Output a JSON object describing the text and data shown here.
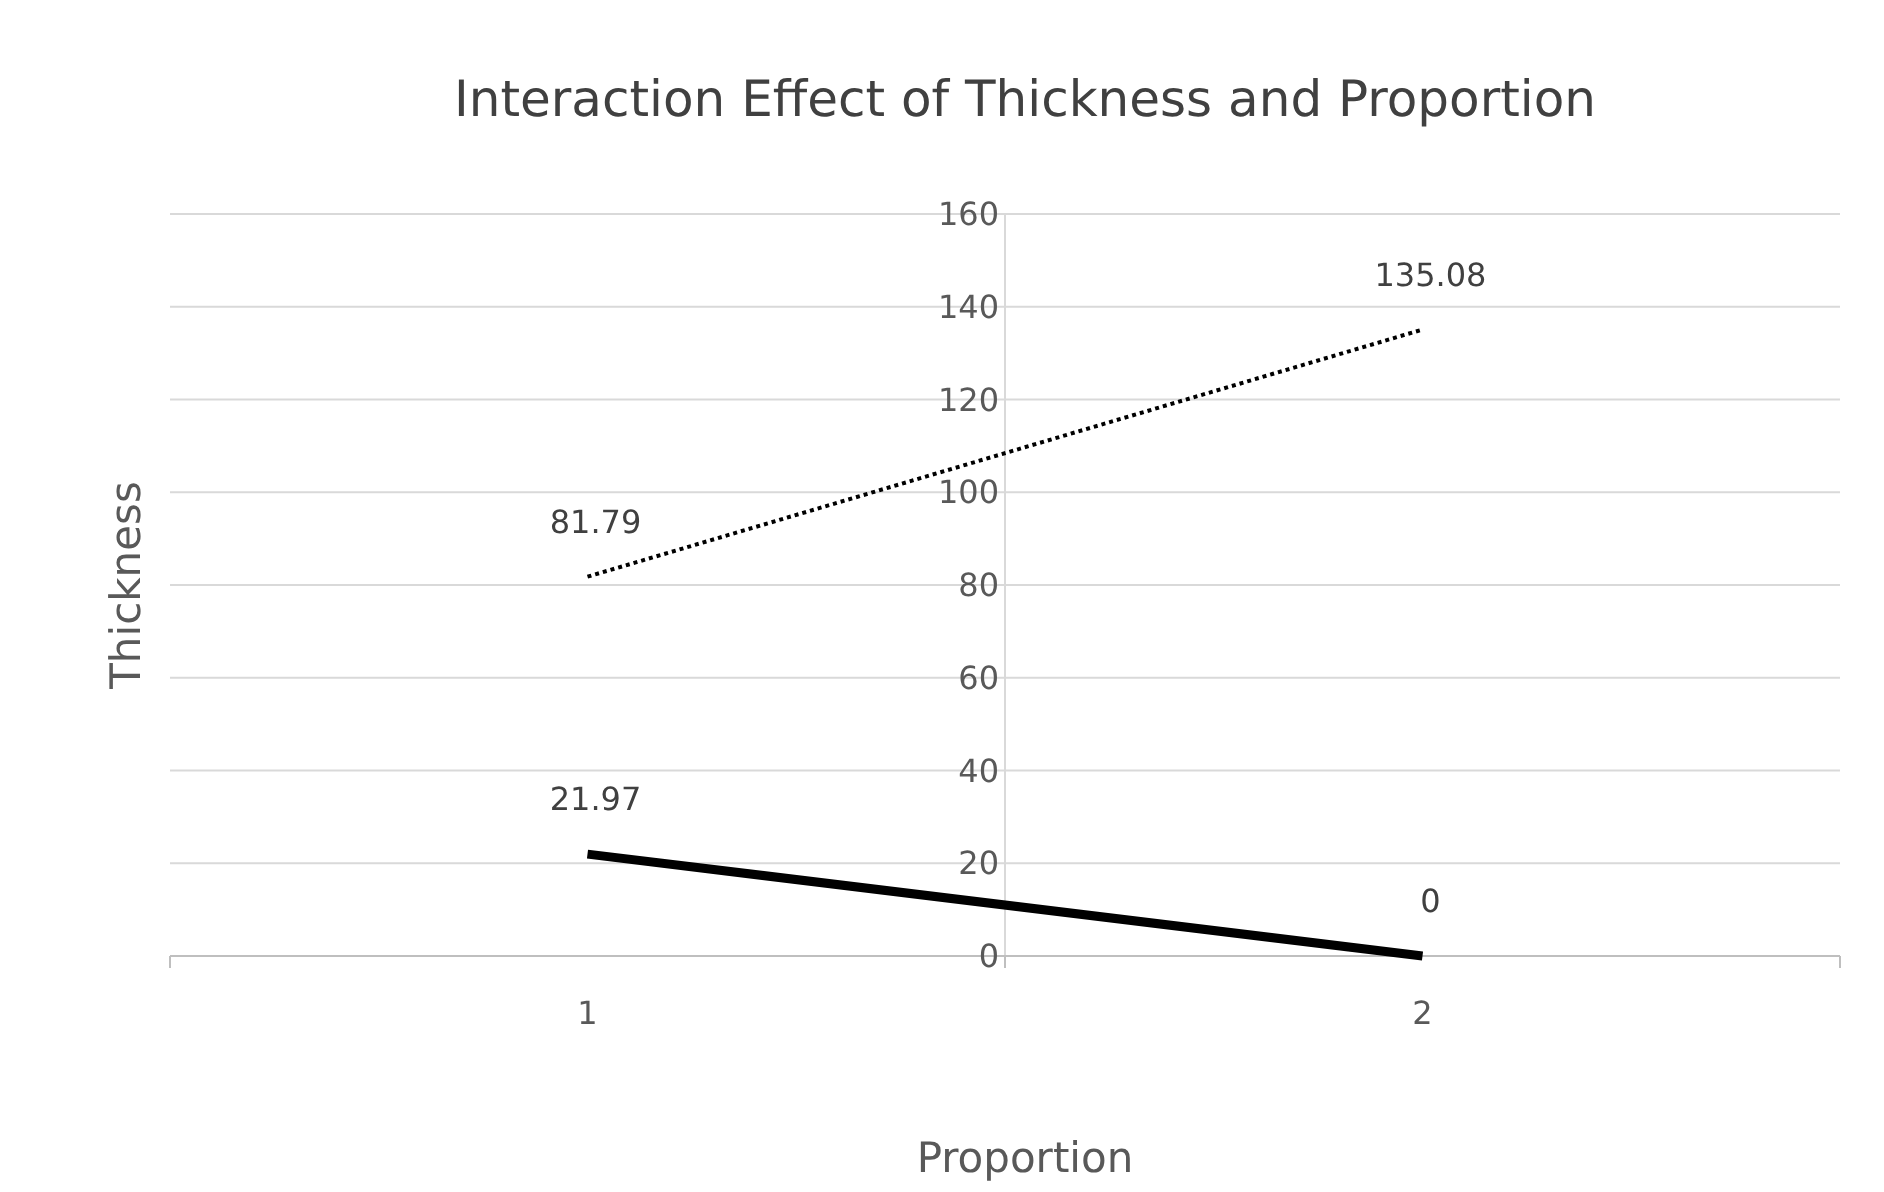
{
  "chart_data": {
    "type": "line",
    "title": "Interaction Effect of Thickness and Proportion",
    "xlabel": "Proportion",
    "ylabel": "Thickness",
    "categories": [
      "1",
      "2"
    ],
    "series": [
      {
        "color": "#000000",
        "values": [
          81.79,
          135.08
        ],
        "line_style": "dotted"
      },
      {
        "color": "#000000",
        "values": [
          21.97,
          0
        ],
        "line_style": "solid"
      }
    ],
    "ylim": [
      0,
      160
    ],
    "yticks": [
      0,
      20,
      40,
      60,
      80,
      100,
      120,
      140,
      160
    ],
    "grid": "y",
    "data_labels": true,
    "marker": "none"
  }
}
